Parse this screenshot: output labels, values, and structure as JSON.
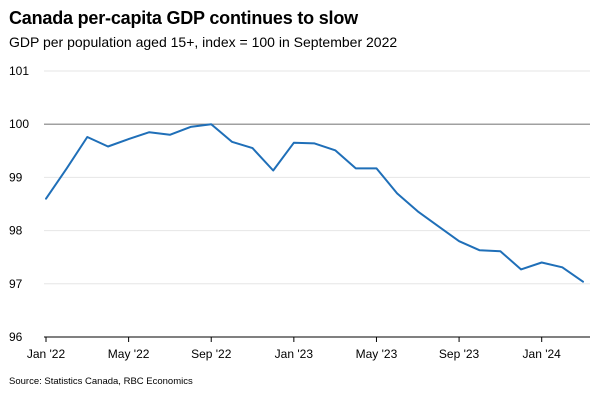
{
  "title": "Canada per-capita GDP continues to slow",
  "subtitle": "GDP per population aged 15+, index = 100 in September 2022",
  "source": "Source: Statistics Canada, RBC Economics",
  "colors": {
    "line": "#1f6fb8",
    "reference": "#808080",
    "grid": "#e6e6e6"
  },
  "chart_data": {
    "type": "line",
    "title": "Canada per-capita GDP continues to slow",
    "subtitle": "GDP per population aged 15+, index = 100 in September 2022",
    "xlabel": "",
    "ylabel": "",
    "ylim": [
      96,
      101
    ],
    "yticks": [
      96,
      97,
      98,
      99,
      100,
      101
    ],
    "reference_line": 100,
    "x_tick_labels": [
      {
        "label": "Jan '22",
        "index": 0
      },
      {
        "label": "May '22",
        "index": 4
      },
      {
        "label": "Sep '22",
        "index": 8
      },
      {
        "label": "Jan '23",
        "index": 12
      },
      {
        "label": "May '23",
        "index": 16
      },
      {
        "label": "Sep '23",
        "index": 20
      },
      {
        "label": "Jan '24",
        "index": 24
      }
    ],
    "series": [
      {
        "name": "GDP per population aged 15+",
        "x": [
          "Jan 2022",
          "Feb 2022",
          "Mar 2022",
          "Apr 2022",
          "May 2022",
          "Jun 2022",
          "Jul 2022",
          "Aug 2022",
          "Sep 2022",
          "Oct 2022",
          "Nov 2022",
          "Dec 2022",
          "Jan 2023",
          "Feb 2023",
          "Mar 2023",
          "Apr 2023",
          "May 2023",
          "Jun 2023",
          "Jul 2023",
          "Aug 2023",
          "Sep 2023",
          "Oct 2023",
          "Nov 2023",
          "Dec 2023",
          "Jan 2024",
          "Feb 2024",
          "Mar 2024"
        ],
        "values": [
          98.6,
          99.17,
          99.76,
          99.58,
          99.72,
          99.85,
          99.8,
          99.95,
          100.0,
          99.67,
          99.55,
          99.13,
          99.65,
          99.64,
          99.51,
          99.17,
          99.17,
          98.7,
          98.36,
          98.08,
          97.8,
          97.63,
          97.61,
          97.27,
          97.4,
          97.31,
          97.04
        ]
      }
    ]
  }
}
